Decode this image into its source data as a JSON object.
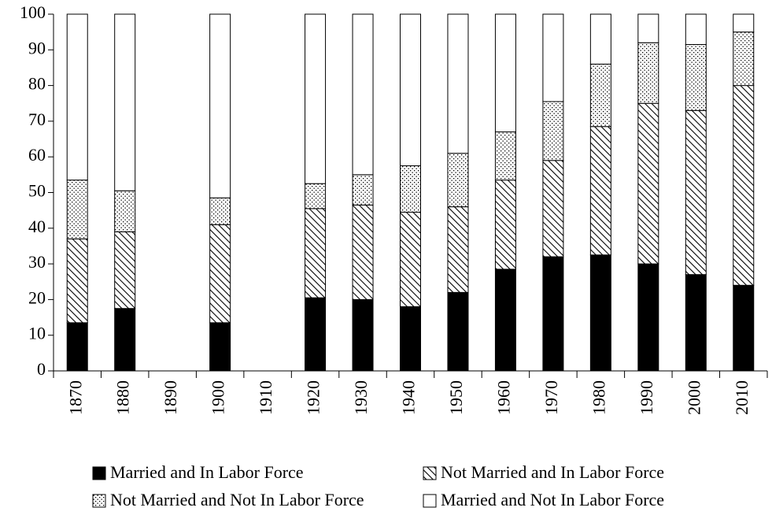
{
  "chart_data": {
    "type": "stacked_bar",
    "categories": [
      "1870",
      "1880",
      "1890",
      "1900",
      "1910",
      "1920",
      "1930",
      "1940",
      "1950",
      "1960",
      "1970",
      "1980",
      "1990",
      "2000",
      "2010"
    ],
    "series": [
      {
        "name": "Married and In Labor Force",
        "color": "#000000",
        "pattern": "solid",
        "values": [
          13.5,
          17.5,
          null,
          13.5,
          null,
          20.5,
          20,
          18,
          22,
          28.5,
          32,
          32.5,
          30,
          27,
          24
        ]
      },
      {
        "name": "Not Married and In Labor Force",
        "color": "#000000",
        "pattern": "hatch",
        "values": [
          23.5,
          21.5,
          null,
          27.5,
          null,
          25,
          26.5,
          26.5,
          24,
          25,
          27,
          36,
          45,
          46,
          56
        ]
      },
      {
        "name": "Not Married and Not In Labor Force",
        "color": "#000000",
        "pattern": "dots",
        "values": [
          16.5,
          11.5,
          null,
          7.5,
          null,
          7,
          8.5,
          13,
          15,
          13.5,
          16.5,
          17.5,
          17,
          18.5,
          15
        ]
      },
      {
        "name": "Married and Not In Labor Force",
        "color": "#ffffff",
        "pattern": "solid",
        "values": [
          46.5,
          49.5,
          null,
          51.5,
          null,
          47.5,
          45,
          42.5,
          39,
          33,
          24.5,
          14,
          8,
          8.5,
          5
        ]
      }
    ],
    "ylim": [
      0,
      100
    ],
    "yticks": [
      0,
      10,
      20,
      30,
      40,
      50,
      60,
      70,
      80,
      90,
      100
    ],
    "grid": false,
    "legend": "bottom"
  }
}
